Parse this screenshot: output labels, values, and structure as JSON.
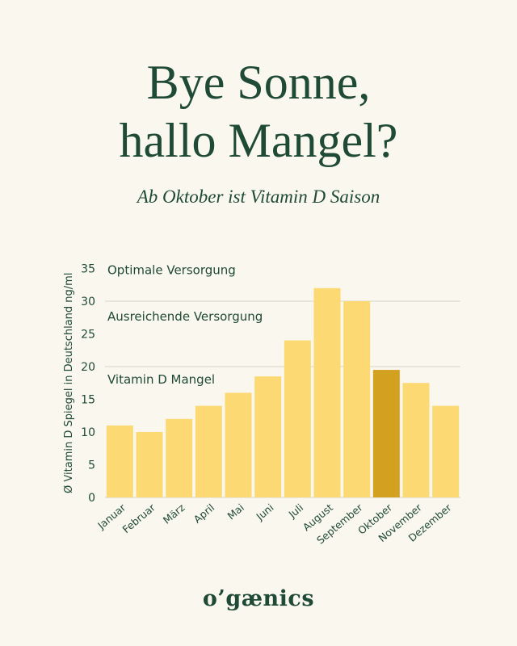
{
  "title_line1": "Bye Sonne,",
  "title_line2": "hallo Mangel?",
  "subtitle": "Ab Oktober ist Vitamin D Saison",
  "brand": "o’gænics",
  "colors": {
    "text": "#1f4a35",
    "bar": "#fcd973",
    "highlight_bar": "#d4a020",
    "background": "#faf7ef",
    "threshold_line": "#d7d3c7"
  },
  "chart_data": {
    "type": "bar",
    "ylabel": "Ø Vitamin D Spiegel in Deutschland ng/ml",
    "xlabel": "",
    "ylim": [
      0,
      35
    ],
    "yticks": [
      0,
      5,
      10,
      15,
      20,
      25,
      30,
      35
    ],
    "categories": [
      "Januar",
      "Februar",
      "März",
      "April",
      "Mai",
      "Juni",
      "Juli",
      "August",
      "September",
      "Oktober",
      "November",
      "Dezember"
    ],
    "values": [
      11,
      10,
      12,
      14,
      16,
      18.5,
      24,
      32,
      30,
      19.5,
      17.5,
      14
    ],
    "highlight": "Oktober",
    "thresholds": [
      {
        "value": 20,
        "label": "Vitamin D Mangel"
      },
      {
        "value": 30,
        "label": "Ausreichende Versorgung"
      },
      {
        "value": 35,
        "label": "Optimale Versorgung"
      }
    ]
  }
}
